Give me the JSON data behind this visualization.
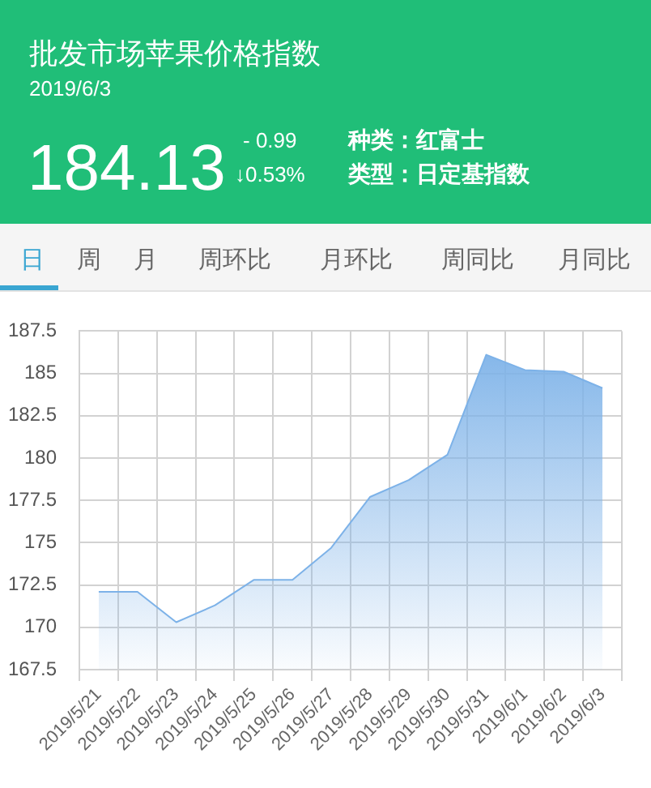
{
  "chart_data": {
    "type": "area",
    "title": "批发市场苹果价格指数",
    "subtitle": "2019/6/3",
    "annotations": [
      "184.13",
      "- 0.99",
      "↓0.53%",
      "种类：红富士",
      "类型：日定基指数",
      "日",
      "周",
      "月",
      "周环比",
      "月环比",
      "周同比",
      "月同比"
    ],
    "categories": [
      "2019/5/21",
      "2019/5/22",
      "2019/5/23",
      "2019/5/24",
      "2019/5/25",
      "2019/5/26",
      "2019/5/27",
      "2019/5/28",
      "2019/5/29",
      "2019/5/30",
      "2019/5/31",
      "2019/6/1",
      "2019/6/2",
      "2019/6/3"
    ],
    "values": [
      172.1,
      172.1,
      170.3,
      171.3,
      172.8,
      172.8,
      174.7,
      177.7,
      178.7,
      180.2,
      186.1,
      185.2,
      185.1,
      184.13
    ],
    "color": "#7db2e8",
    "ylim": [
      167.5,
      187.5
    ],
    "yticks": [
      167.5,
      170,
      172.5,
      175,
      177.5,
      180,
      182.5,
      185,
      187.5
    ],
    "grid": true
  }
}
